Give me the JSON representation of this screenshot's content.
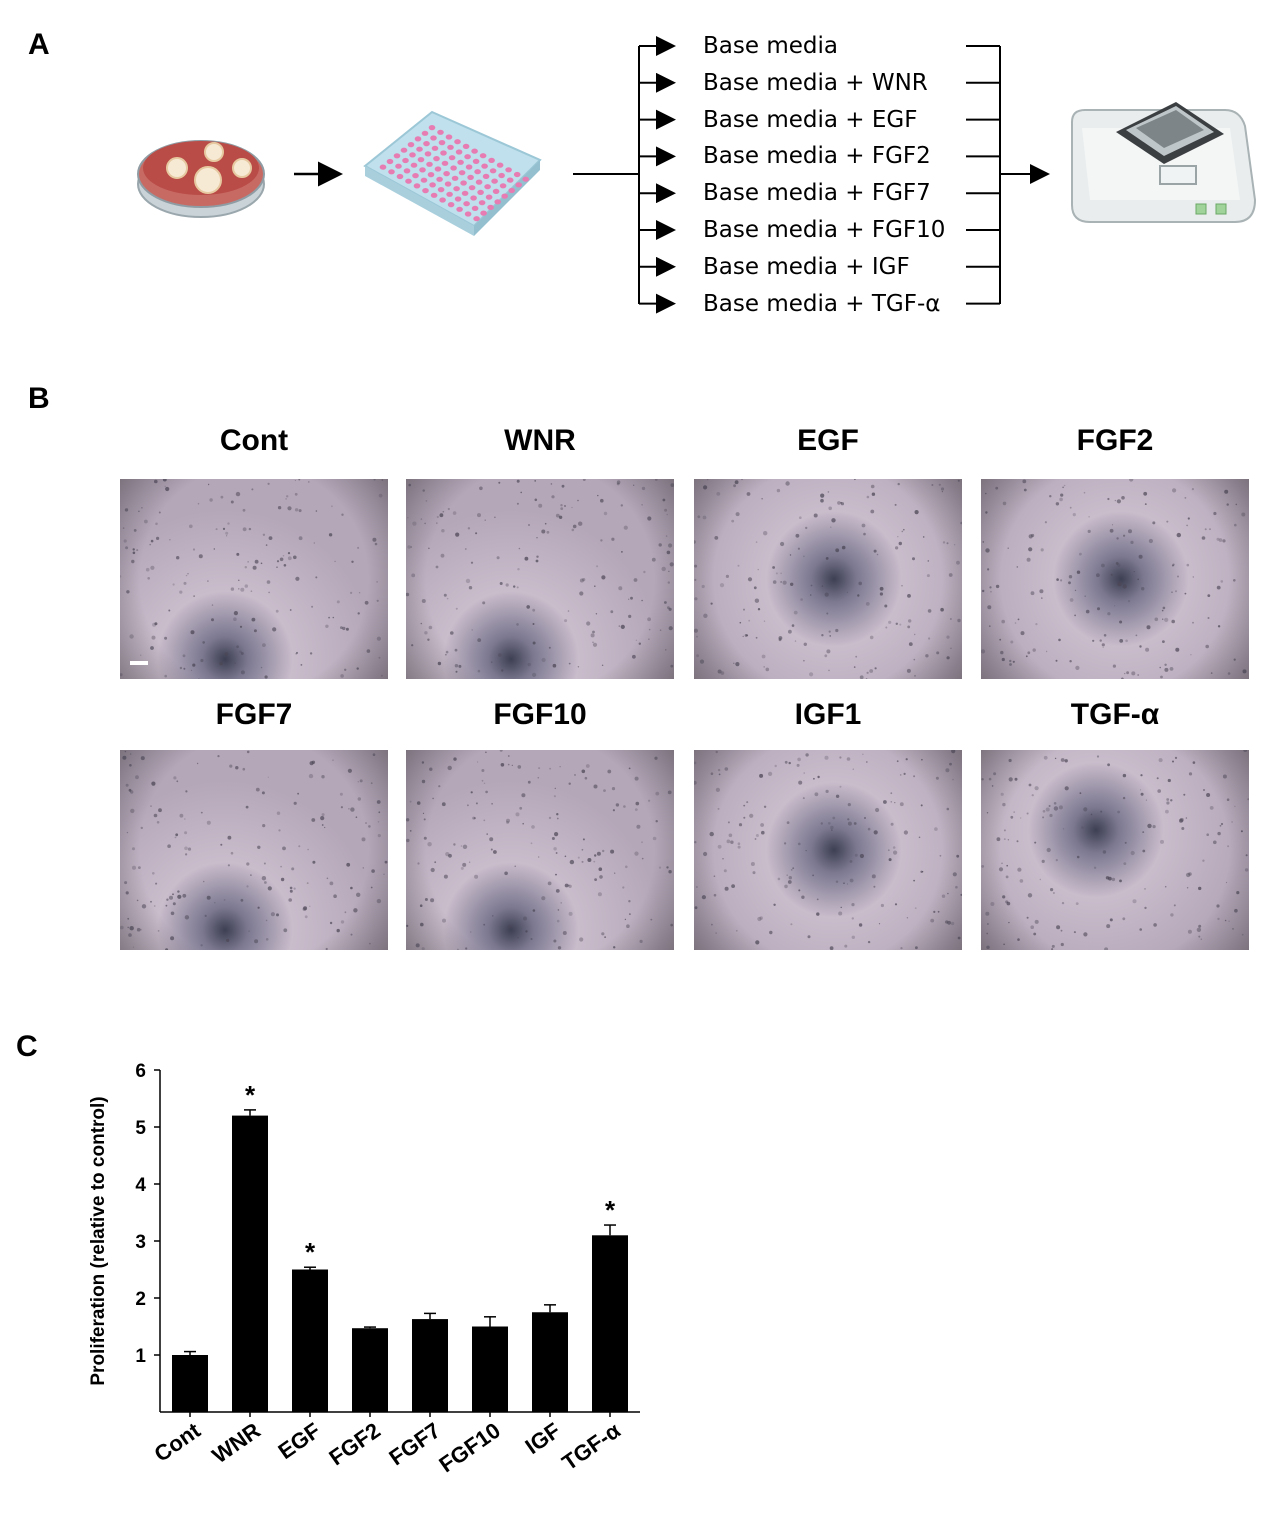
{
  "panel_a": {
    "letter": "A",
    "conditions": [
      "Base media",
      "Base media + WNR",
      "Base media + EGF",
      "Base media + FGF2",
      "Base media + FGF7",
      "Base media + FGF10",
      "Base media + IGF",
      "Base media + TGF-α"
    ]
  },
  "panel_b": {
    "letter": "B",
    "images": [
      {
        "label": "Cont",
        "center_darkening": "bottom"
      },
      {
        "label": "WNR",
        "center_darkening": "bottom"
      },
      {
        "label": "EGF",
        "center_darkening": "middle"
      },
      {
        "label": "FGF2",
        "center_darkening": "middle"
      },
      {
        "label": "FGF7",
        "center_darkening": "bottom"
      },
      {
        "label": "FGF10",
        "center_darkening": "bottom"
      },
      {
        "label": "IGF1",
        "center_darkening": "middle"
      },
      {
        "label": "TGF-α",
        "center_darkening": "upper-middle"
      }
    ]
  },
  "panel_c": {
    "letter": "C",
    "significance_marker": "*"
  },
  "chart_data": {
    "type": "bar",
    "ylabel": "Proliferation (relative to control)",
    "xlabel": "",
    "ylim": [
      0,
      6
    ],
    "yticks": [
      1,
      2,
      3,
      4,
      5,
      6
    ],
    "categories": [
      "Cont",
      "WNR",
      "EGF",
      "FGF2",
      "FGF7",
      "FGF10",
      "IGF",
      "TGF-α"
    ],
    "values": [
      1.0,
      5.2,
      2.5,
      1.47,
      1.63,
      1.5,
      1.75,
      3.1
    ],
    "errors": [
      0.06,
      0.1,
      0.04,
      0.02,
      0.1,
      0.17,
      0.13,
      0.18
    ],
    "significant": [
      false,
      true,
      true,
      false,
      false,
      false,
      false,
      true
    ],
    "bar_color": "#000000",
    "grid": false
  }
}
